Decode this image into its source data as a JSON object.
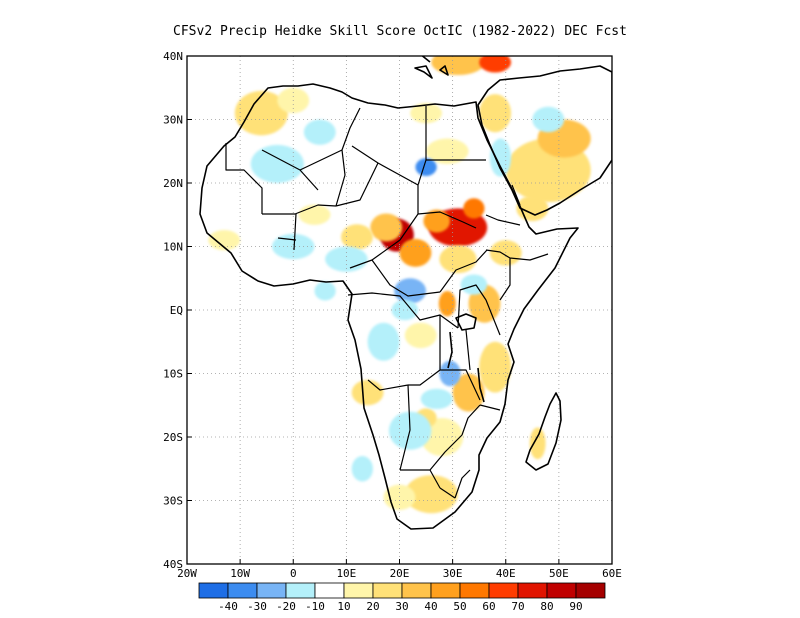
{
  "title": "CFSv2 Precip Heidke Skill Score OctIC (1982-2022) DEC Fcst",
  "map": {
    "lon_range": [
      -20,
      60
    ],
    "lat_range": [
      -40,
      40
    ],
    "lon_ticks": [
      {
        "value": -20,
        "label": "20W"
      },
      {
        "value": -10,
        "label": "10W"
      },
      {
        "value": 0,
        "label": "0"
      },
      {
        "value": 10,
        "label": "10E"
      },
      {
        "value": 20,
        "label": "20E"
      },
      {
        "value": 30,
        "label": "30E"
      },
      {
        "value": 40,
        "label": "40E"
      },
      {
        "value": 50,
        "label": "50E"
      },
      {
        "value": 60,
        "label": "60E"
      }
    ],
    "lat_ticks": [
      {
        "value": 40,
        "label": "40N"
      },
      {
        "value": 30,
        "label": "30N"
      },
      {
        "value": 20,
        "label": "20N"
      },
      {
        "value": 10,
        "label": "10N"
      },
      {
        "value": 0,
        "label": "EQ"
      },
      {
        "value": -10,
        "label": "10S"
      },
      {
        "value": -20,
        "label": "20S"
      },
      {
        "value": -30,
        "label": "30S"
      },
      {
        "value": -40,
        "label": "40S"
      }
    ],
    "grid": true
  },
  "colorbar": {
    "colors": [
      "#1e6ee6",
      "#3c8cf0",
      "#78b4f5",
      "#b4f0fa",
      "#ffffff",
      "#fff5aa",
      "#ffe178",
      "#ffc34b",
      "#ffa01e",
      "#ff7800",
      "#ff3c00",
      "#e11400",
      "#c00000",
      "#a50000"
    ],
    "labels": [
      "-40",
      "-30",
      "-20",
      "-10",
      "10",
      "20",
      "30",
      "40",
      "50",
      "60",
      "70",
      "80",
      "90"
    ]
  },
  "field_blobs": [
    {
      "lon": 19.5,
      "lat": 11.8,
      "rx": 3.2,
      "ry": 2.6,
      "level": 12
    },
    {
      "lon": 31.0,
      "lat": 13.0,
      "rx": 5.5,
      "ry": 3.0,
      "level": 11
    },
    {
      "lon": 23.0,
      "lat": 9.0,
      "rx": 3.0,
      "ry": 2.2,
      "level": 8
    },
    {
      "lon": 17.5,
      "lat": 13.0,
      "rx": 3.0,
      "ry": 2.2,
      "level": 7
    },
    {
      "lon": 12.0,
      "lat": 11.5,
      "rx": 3.0,
      "ry": 2.0,
      "level": 6
    },
    {
      "lon": 4.0,
      "lat": 15.0,
      "rx": 3.0,
      "ry": 1.6,
      "level": 5
    },
    {
      "lon": 31.0,
      "lat": 8.0,
      "rx": 3.5,
      "ry": 2.2,
      "level": 6
    },
    {
      "lon": 27.0,
      "lat": 14.0,
      "rx": 2.5,
      "ry": 1.8,
      "level": 8
    },
    {
      "lon": 34.0,
      "lat": 16.0,
      "rx": 2.0,
      "ry": 1.6,
      "level": 9
    },
    {
      "lon": -6.0,
      "lat": 31.0,
      "rx": 5.0,
      "ry": 3.5,
      "level": 6
    },
    {
      "lon": 0.0,
      "lat": 33.0,
      "rx": 3.0,
      "ry": 2.0,
      "level": 5
    },
    {
      "lon": 48.0,
      "lat": 22.0,
      "rx": 8.0,
      "ry": 5.0,
      "level": 6
    },
    {
      "lon": 51.0,
      "lat": 27.0,
      "rx": 5.0,
      "ry": 3.0,
      "level": 7
    },
    {
      "lon": 45.0,
      "lat": 16.0,
      "rx": 3.0,
      "ry": 2.0,
      "level": 6
    },
    {
      "lon": 38.0,
      "lat": 31.0,
      "rx": 3.0,
      "ry": 3.0,
      "level": 6
    },
    {
      "lon": 25.0,
      "lat": 31.0,
      "rx": 3.0,
      "ry": 1.6,
      "level": 5
    },
    {
      "lon": 29.0,
      "lat": 25.0,
      "rx": 4.0,
      "ry": 2.0,
      "level": 5
    },
    {
      "lon": 31.0,
      "lat": 39.0,
      "rx": 5.0,
      "ry": 2.0,
      "level": 7
    },
    {
      "lon": 38.0,
      "lat": 39.0,
      "rx": 3.0,
      "ry": 1.6,
      "level": 10
    },
    {
      "lon": 36.0,
      "lat": 1.0,
      "rx": 3.0,
      "ry": 3.0,
      "level": 7
    },
    {
      "lon": 38.0,
      "lat": -9.0,
      "rx": 3.0,
      "ry": 4.0,
      "level": 6
    },
    {
      "lon": 33.0,
      "lat": -13.0,
      "rx": 3.0,
      "ry": 3.0,
      "level": 7
    },
    {
      "lon": 28.0,
      "lat": -20.0,
      "rx": 4.0,
      "ry": 3.0,
      "level": 5
    },
    {
      "lon": 26.0,
      "lat": -29.0,
      "rx": 5.0,
      "ry": 3.0,
      "level": 6
    },
    {
      "lon": 20.0,
      "lat": -29.5,
      "rx": 3.0,
      "ry": 2.0,
      "level": 5
    },
    {
      "lon": 24.0,
      "lat": -4.0,
      "rx": 3.0,
      "ry": 2.0,
      "level": 5
    },
    {
      "lon": 14.0,
      "lat": -13.0,
      "rx": 3.0,
      "ry": 2.0,
      "level": 6
    },
    {
      "lon": 46.0,
      "lat": -21.0,
      "rx": 1.5,
      "ry": 2.5,
      "level": 6
    },
    {
      "lon": 40.0,
      "lat": 9.0,
      "rx": 3.0,
      "ry": 2.0,
      "level": 6
    },
    {
      "lon": -13.0,
      "lat": 11.0,
      "rx": 3.0,
      "ry": 1.6,
      "level": 5
    },
    {
      "lon": 25.0,
      "lat": -17.0,
      "rx": 2.0,
      "ry": 1.5,
      "level": 6
    },
    {
      "lon": 29.0,
      "lat": 1.0,
      "rx": 1.6,
      "ry": 2.0,
      "level": 8
    },
    {
      "lon": 22.0,
      "lat": 3.0,
      "rx": 3.0,
      "ry": 2.0,
      "level": 2
    },
    {
      "lon": 25.0,
      "lat": 22.5,
      "rx": 2.0,
      "ry": 1.4,
      "level": 1
    },
    {
      "lon": 21.0,
      "lat": 0.0,
      "rx": 2.5,
      "ry": 1.6,
      "level": 3
    },
    {
      "lon": 27.0,
      "lat": -14.0,
      "rx": 3.0,
      "ry": 1.6,
      "level": 3
    },
    {
      "lon": 22.0,
      "lat": -19.0,
      "rx": 4.0,
      "ry": 3.0,
      "level": 3
    },
    {
      "lon": 10.0,
      "lat": 8.0,
      "rx": 4.0,
      "ry": 2.0,
      "level": 3
    },
    {
      "lon": -3.0,
      "lat": 23.0,
      "rx": 5.0,
      "ry": 3.0,
      "level": 3
    },
    {
      "lon": 5.0,
      "lat": 28.0,
      "rx": 3.0,
      "ry": 2.0,
      "level": 3
    },
    {
      "lon": 0.0,
      "lat": 10.0,
      "rx": 4.0,
      "ry": 2.0,
      "level": 3
    },
    {
      "lon": 17.0,
      "lat": -5.0,
      "rx": 3.0,
      "ry": 3.0,
      "level": 3
    },
    {
      "lon": 29.5,
      "lat": -10.0,
      "rx": 2.0,
      "ry": 2.0,
      "level": 2
    },
    {
      "lon": 34.0,
      "lat": 4.0,
      "rx": 2.5,
      "ry": 1.6,
      "level": 3
    },
    {
      "lon": 13.0,
      "lat": -25.0,
      "rx": 2.0,
      "ry": 2.0,
      "level": 3
    },
    {
      "lon": 39.0,
      "lat": 24.0,
      "rx": 2.0,
      "ry": 3.0,
      "level": 3
    },
    {
      "lon": 48.0,
      "lat": 30.0,
      "rx": 3.0,
      "ry": 2.0,
      "level": 3
    },
    {
      "lon": 6.0,
      "lat": 3.0,
      "rx": 2.0,
      "ry": 1.5,
      "level": 3
    }
  ]
}
